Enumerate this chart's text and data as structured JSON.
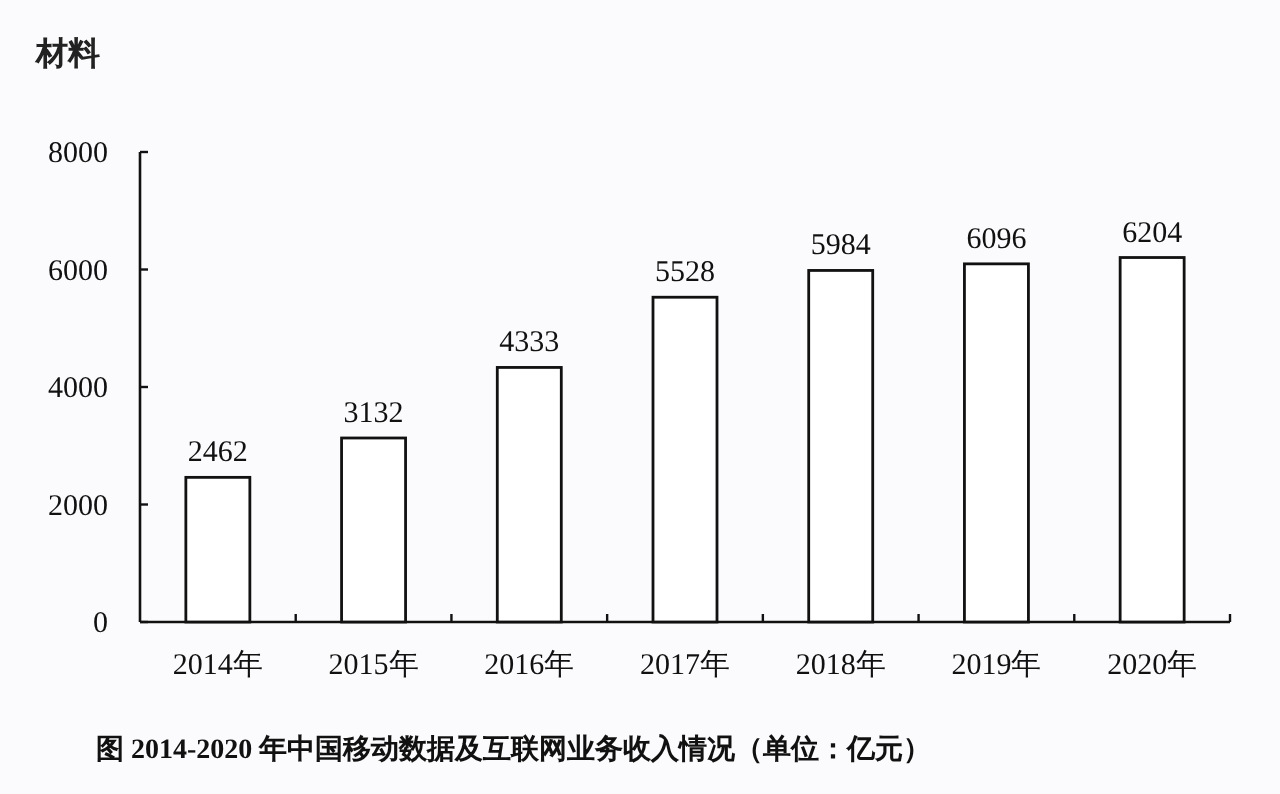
{
  "chart_data": {
    "type": "bar",
    "title": "材料",
    "categories": [
      "2014年",
      "2015年",
      "2016年",
      "2017年",
      "2018年",
      "2019年",
      "2020年"
    ],
    "values": [
      2462,
      3132,
      4333,
      5528,
      5984,
      6096,
      6204
    ],
    "color": "#ffffff",
    "data_labels": true,
    "ylim": [
      0,
      8000
    ],
    "yticks": [
      0,
      2000,
      4000,
      6000,
      8000
    ],
    "annotations": [
      "图 2014-2020 年中国移动数据及互联网业务收入情况（单位：亿元）"
    ]
  }
}
